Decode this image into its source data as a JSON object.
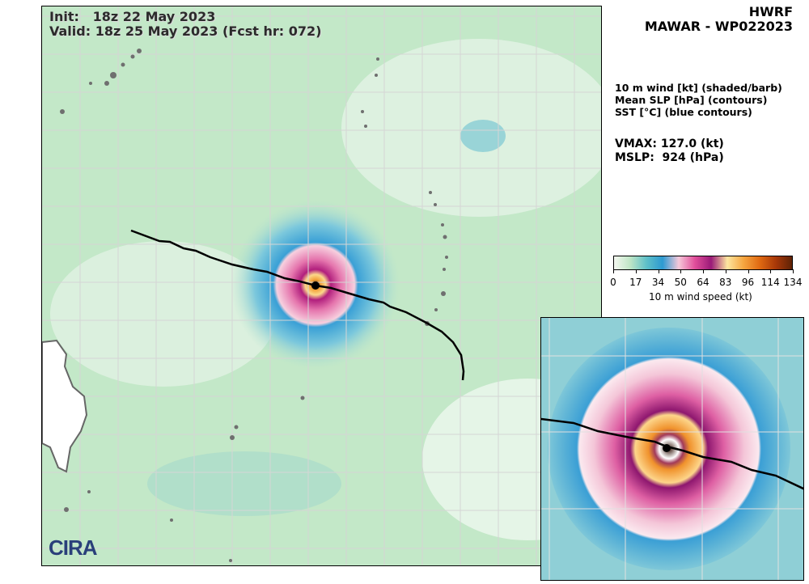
{
  "header": {
    "init": "Init:   18z 22 May 2023",
    "valid": "Valid: 18z 25 May 2023 (Fcst hr: 072)"
  },
  "title": {
    "model": "HWRF",
    "storm": "MAWAR - WP022023"
  },
  "legend": {
    "line1": "10 m wind [kt] (shaded/barb)",
    "line2": "Mean SLP [hPa] (contours)",
    "line3": "SST [°C] (blue contours)"
  },
  "stats": {
    "vmax": "VMAX: 127.0 (kt)",
    "mslp": "MSLP:  924 (hPa)"
  },
  "colorbar": {
    "ticks": [
      "0",
      "17",
      "34",
      "50",
      "64",
      "83",
      "96",
      "114",
      "134"
    ],
    "label": "10 m wind speed (kt)",
    "colors": [
      "#f4f8f0",
      "#bfe6c6",
      "#5fc0c8",
      "#2d9ad1",
      "#f6c8da",
      "#e14e9a",
      "#9a1a78",
      "#fde6a0",
      "#f6a640",
      "#e06a12",
      "#a83808",
      "#5e2206"
    ]
  },
  "logo": {
    "text": "CIRA"
  }
}
